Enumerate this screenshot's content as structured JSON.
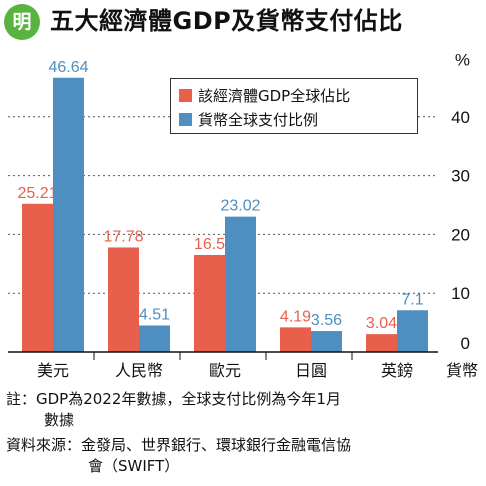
{
  "header": {
    "logo_text": "明",
    "logo_color": "#59b33f",
    "title": "五大經濟體GDP及貨幣支付佔比"
  },
  "chart_data": {
    "type": "bar",
    "categories": [
      "美元",
      "人民幣",
      "歐元",
      "日圓",
      "英鎊"
    ],
    "x_unit_label": "貨幣",
    "y_unit": "%",
    "ylim": [
      0,
      50
    ],
    "yticks": [
      0,
      10,
      20,
      30,
      40
    ],
    "grid": true,
    "legend_position": "top-right",
    "series": [
      {
        "name": "該經濟體GDP全球佔比",
        "color": "#e8604c",
        "values": [
          25.21,
          17.78,
          16.5,
          4.19,
          3.04
        ],
        "labels": [
          "25.21",
          "17.78",
          "16.5",
          "4.19",
          "3.04"
        ]
      },
      {
        "name": "貨幣全球支付比例",
        "color": "#4d8fc0",
        "values": [
          46.64,
          4.51,
          23.02,
          3.56,
          7.1
        ],
        "labels": [
          "46.64",
          "4.51",
          "23.02",
          "3.56",
          "7.1"
        ]
      }
    ]
  },
  "notes": {
    "note_line1": "註：GDP為2022年數據，全球支付比例為今年1月",
    "note_line2": "數據",
    "source_line1": "資料來源：金發局、世界銀行、環球銀行金融電信協",
    "source_line2": "會（SWIFT）"
  }
}
